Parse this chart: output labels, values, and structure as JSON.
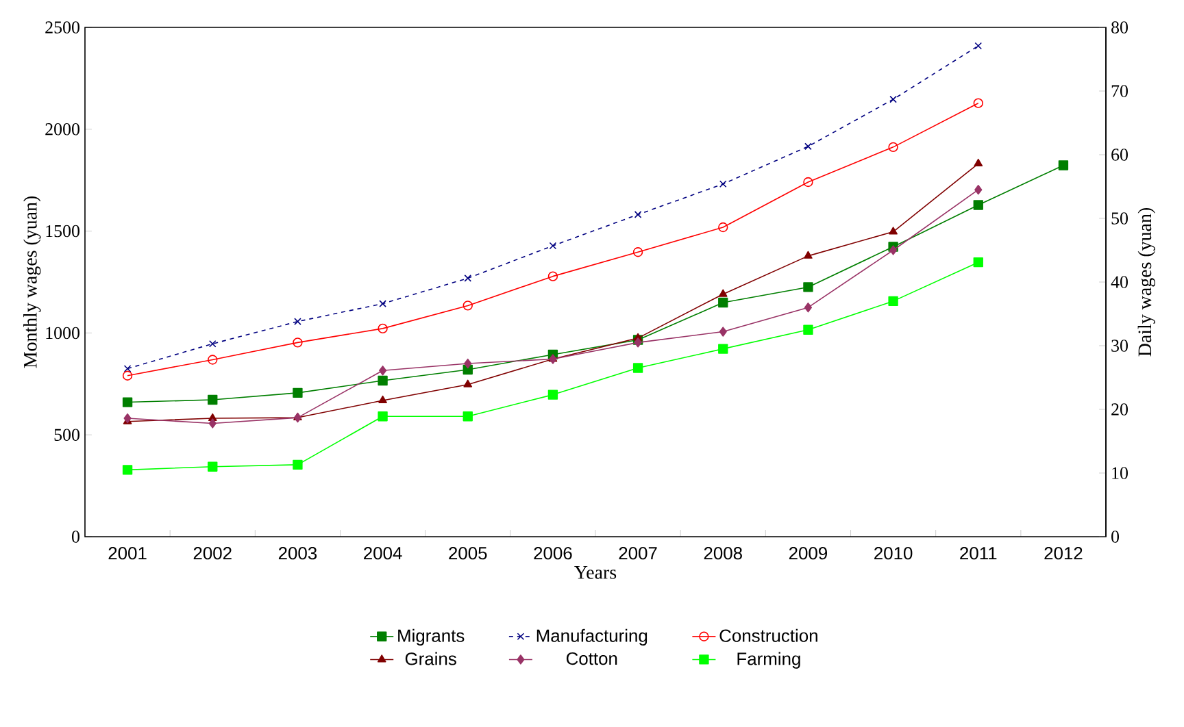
{
  "chart_data": {
    "type": "line",
    "xlabel": "Years",
    "ylabel": "Monthly wages (yuan)",
    "y2label": "Daily wages (yuan)",
    "categories": [
      "2001",
      "2002",
      "2003",
      "2004",
      "2005",
      "2006",
      "2007",
      "2008",
      "2009",
      "2010",
      "2011",
      "2012"
    ],
    "ylim": [
      0,
      2500
    ],
    "yticks": [
      0,
      500,
      1000,
      1500,
      2000,
      2500
    ],
    "y2lim": [
      0,
      80
    ],
    "y2ticks": [
      0,
      10,
      20,
      30,
      40,
      50,
      60,
      70,
      80
    ],
    "grid": false,
    "legend": "bottom",
    "series": [
      {
        "name": "Migrants",
        "color": "#007f00",
        "marker": "square",
        "line_style": "solid",
        "values": [
          660,
          672,
          706,
          766,
          820,
          894,
          966,
          1149,
          1225,
          1423,
          1628,
          1823
        ]
      },
      {
        "name": "Manufacturing",
        "color": "#000080",
        "marker": "cross",
        "line_style": "dashed",
        "axis": "y2",
        "values": [
          26.4,
          30.3,
          33.8,
          36.6,
          40.6,
          45.7,
          50.6,
          55.4,
          61.3,
          68.7,
          77.1,
          null
        ]
      },
      {
        "name": "Construction",
        "color": "#ff0000",
        "marker": "circle",
        "line_style": "solid",
        "axis": "y2",
        "values": [
          25.3,
          27.8,
          30.5,
          32.7,
          36.3,
          40.9,
          44.7,
          48.6,
          55.7,
          61.2,
          68.1,
          null
        ]
      },
      {
        "name": "Grains",
        "color": "#800000",
        "marker": "triangle",
        "line_style": "solid",
        "axis": "y2",
        "values": [
          18.1,
          18.6,
          18.7,
          21.4,
          23.9,
          27.9,
          31.2,
          38.1,
          44.1,
          47.9,
          58.6,
          null
        ]
      },
      {
        "name": "Cotton",
        "color": "#993366",
        "marker": "diamond",
        "line_style": "solid",
        "axis": "y2",
        "values": [
          18.6,
          17.8,
          18.7,
          26.1,
          27.2,
          27.9,
          30.5,
          32.2,
          36.0,
          45.0,
          54.5,
          null
        ]
      },
      {
        "name": "Farming",
        "color": "#00ff00",
        "marker": "square",
        "line_style": "solid",
        "axis": "y2",
        "values": [
          10.5,
          11.0,
          11.3,
          18.9,
          18.9,
          22.3,
          26.5,
          29.5,
          32.5,
          37.0,
          43.1,
          null
        ]
      }
    ]
  }
}
